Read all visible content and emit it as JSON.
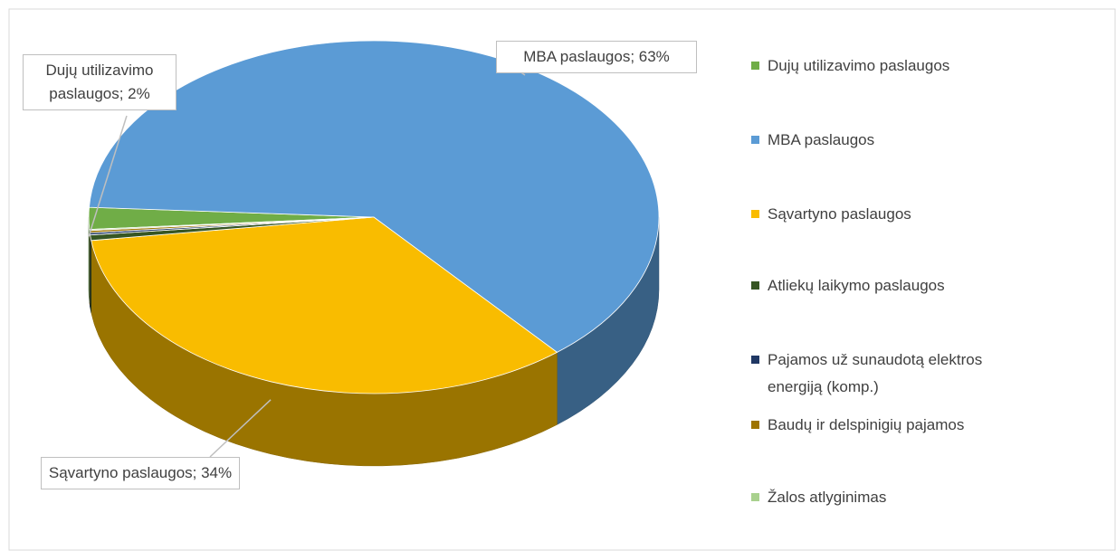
{
  "chart_data": {
    "type": "pie3d",
    "categories": [
      "Dujų utilizavimo paslaugos",
      "MBA paslaugos",
      "Sąvartyno paslaugos",
      "Atliekų laikymo paslaugos",
      "Pajamos už sunaudotą elektros energiją (komp.)",
      "Baudų ir delspinigių pajamos",
      "Žalos atlyginimas"
    ],
    "values": [
      2,
      63,
      34,
      0.5,
      0.2,
      0.2,
      0.1
    ],
    "value_labels": [
      "Dujų utilizavimo paslaugos; 2%",
      "MBA paslaugos; 63%",
      "Sąvartyno paslaugos; 34%",
      null,
      null,
      null,
      null
    ],
    "colors": [
      "#70ad47",
      "#5b9bd5",
      "#f9bc00",
      "#375623",
      "#203864",
      "#9e7400",
      "#a9d18e"
    ],
    "legend": "right"
  }
}
